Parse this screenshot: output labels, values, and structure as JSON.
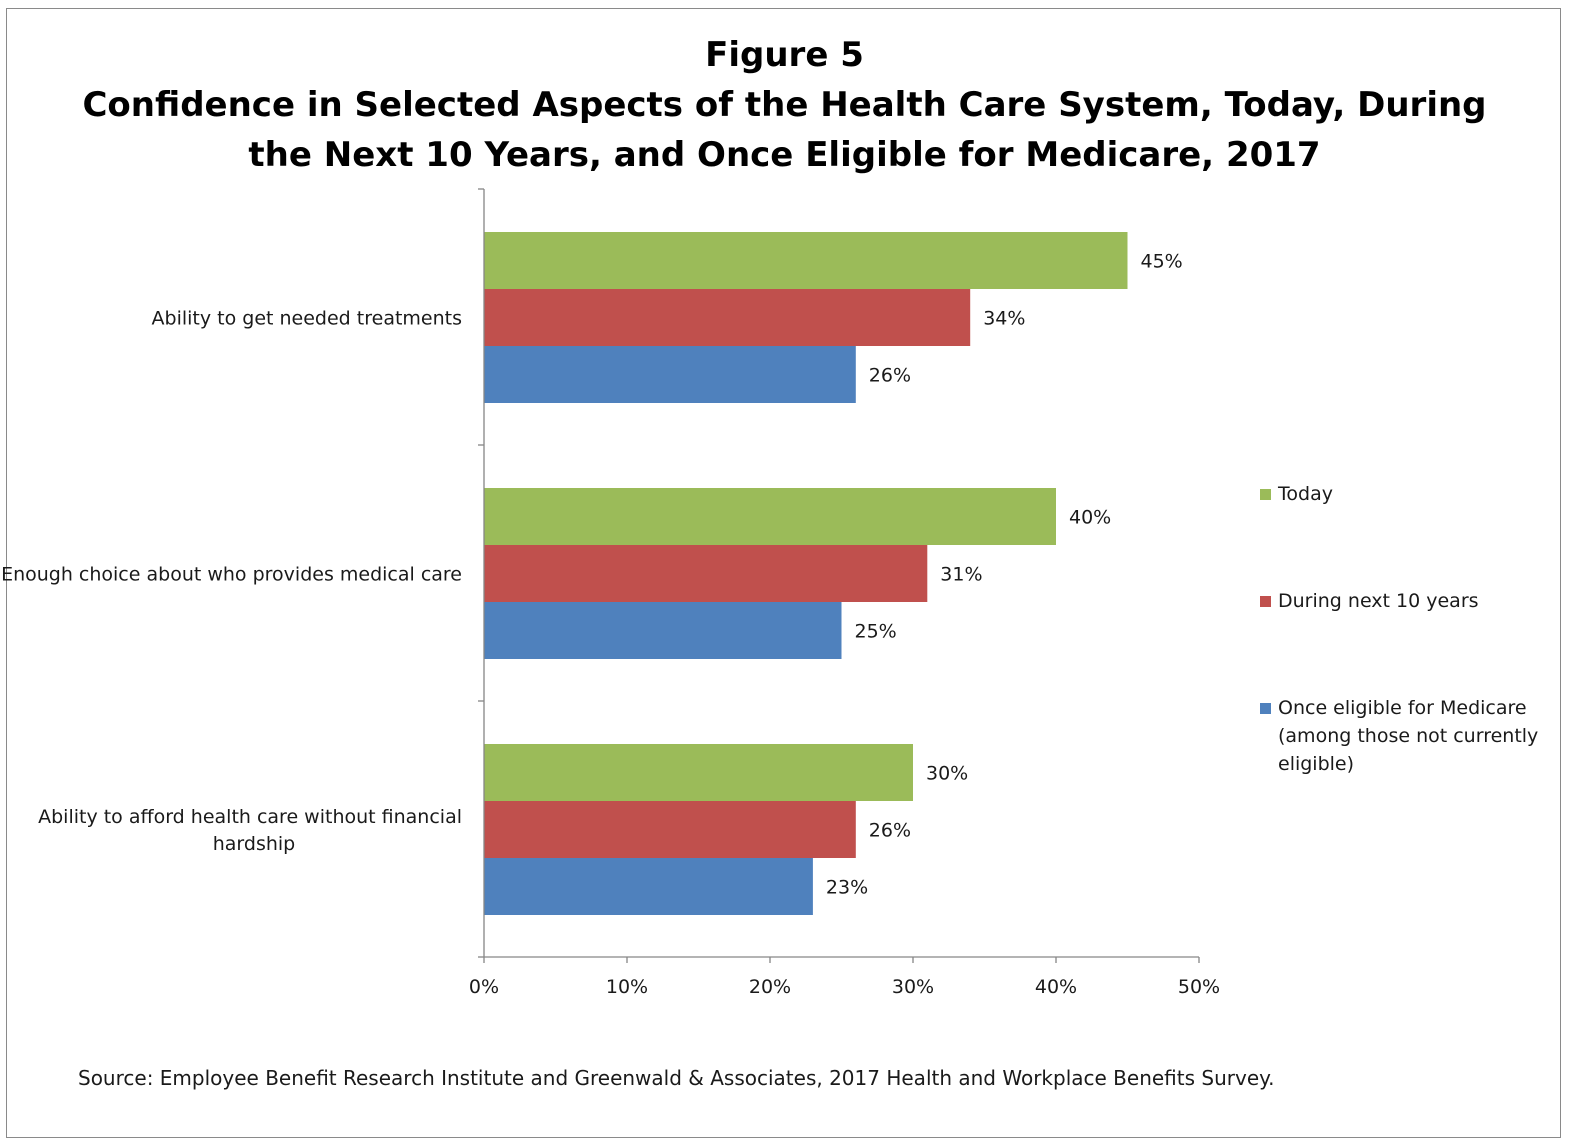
{
  "chart_data": {
    "type": "bar",
    "orientation": "horizontal",
    "title_lines": [
      "Figure 5",
      "Confidence in Selected Aspects of the Health Care System, Today, During",
      "the Next 10 Years, and Once Eligible for Medicare, 2017"
    ],
    "categories": [
      {
        "lines": [
          "Ability to get needed treatments"
        ]
      },
      {
        "lines": [
          "Enough choice about who provides medical care"
        ]
      },
      {
        "lines": [
          "Ability to afford health care without financial",
          "hardship"
        ]
      }
    ],
    "series": [
      {
        "name": "Today",
        "color": "#9bbb59",
        "values": [
          45,
          40,
          30
        ],
        "labels": [
          "45%",
          "40%",
          "30%"
        ]
      },
      {
        "name": "During next 10 years",
        "color": "#c0504d",
        "values": [
          34,
          31,
          26
        ],
        "labels": [
          "34%",
          "31%",
          "26%"
        ]
      },
      {
        "name_lines": [
          "Once eligible for Medicare",
          "(among those not currently",
          "eligible)"
        ],
        "color": "#4f81bd",
        "values": [
          26,
          25,
          23
        ],
        "labels": [
          "26%",
          "25%",
          "23%"
        ]
      }
    ],
    "xlim": [
      0,
      50
    ],
    "x_ticks": [
      0,
      10,
      20,
      30,
      40,
      50
    ],
    "x_tick_labels": [
      "0%",
      "10%",
      "20%",
      "30%",
      "40%",
      "50%"
    ],
    "grid": false,
    "legend_position": "right"
  },
  "source_note": "Source: Employee Benefit Research Institute and Greenwald & Associates, 2017 Health and Workplace Benefits Survey."
}
